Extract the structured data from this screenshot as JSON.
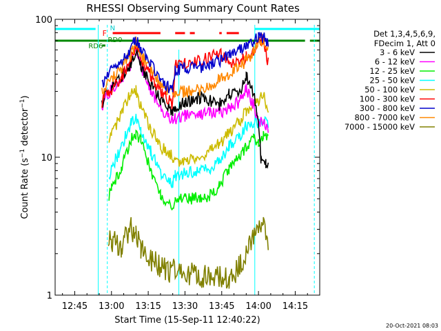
{
  "chart_data": {
    "type": "line",
    "title": "RHESSI Observing Summary Count Rates",
    "xlabel": "Start Time (15-Sep-11 12:40:22)",
    "ylabel": "Count Rate (s⁻¹ detector⁻¹)",
    "ylabel_parts": {
      "pre": "Count Rate (s",
      "sup1": "−1",
      "mid": " detector",
      "sup2": "−1",
      "post": ")"
    },
    "yscale": "log",
    "ylim": [
      1,
      100
    ],
    "xlim_minutes": [
      -23,
      85
    ],
    "x_ticks": [
      {
        "m": -15,
        "label": "12:45"
      },
      {
        "m": 0,
        "label": "13:00"
      },
      {
        "m": 15,
        "label": "13:15"
      },
      {
        "m": 30,
        "label": "13:30"
      },
      {
        "m": 45,
        "label": "13:45"
      },
      {
        "m": 60,
        "label": "14:00"
      },
      {
        "m": 75,
        "label": "14:15"
      }
    ],
    "y_ticks": [
      {
        "v": 1,
        "label": "1"
      },
      {
        "v": 10,
        "label": "10"
      },
      {
        "v": 100,
        "label": "100"
      }
    ],
    "grid": false,
    "legend_position": "right",
    "legend_header": [
      "Det 1,3,4,5,6,9,",
      "FDecim 1, Att 0"
    ],
    "series": [
      {
        "name": "3 - 6 keV",
        "color": "#000000",
        "values": [
          [
            -3.9,
            24
          ],
          [
            -3,
            28
          ],
          [
            0,
            32
          ],
          [
            4,
            38
          ],
          [
            8,
            48
          ],
          [
            10,
            58
          ],
          [
            12,
            46
          ],
          [
            16,
            34
          ],
          [
            20,
            26
          ],
          [
            25,
            21
          ],
          [
            26,
            23
          ],
          [
            30,
            25
          ],
          [
            36,
            27
          ],
          [
            40,
            26
          ],
          [
            44,
            24
          ],
          [
            48,
            29
          ],
          [
            52,
            28
          ],
          [
            55,
            38
          ],
          [
            58,
            30
          ],
          [
            60,
            17
          ],
          [
            61,
            10
          ],
          [
            63,
            9
          ],
          [
            64,
            8.5
          ]
        ]
      },
      {
        "name": "6 - 12 keV",
        "color": "#ff00ff",
        "values": [
          [
            -3.9,
            23
          ],
          [
            -3,
            26
          ],
          [
            0,
            31
          ],
          [
            4,
            36
          ],
          [
            8,
            48
          ],
          [
            10,
            64
          ],
          [
            12,
            46
          ],
          [
            16,
            31
          ],
          [
            20,
            23
          ],
          [
            25,
            18
          ],
          [
            26,
            19
          ],
          [
            30,
            20
          ],
          [
            36,
            20
          ],
          [
            40,
            21
          ],
          [
            44,
            21
          ],
          [
            48,
            23
          ],
          [
            52,
            25
          ],
          [
            55,
            31
          ],
          [
            58,
            24
          ],
          [
            60,
            18
          ],
          [
            62,
            18
          ],
          [
            64,
            16
          ]
        ]
      },
      {
        "name": "12 - 25 keV",
        "color": "#00ee00",
        "values": [
          [
            -1,
            5.2
          ],
          [
            0,
            5.8
          ],
          [
            4,
            8.5
          ],
          [
            8,
            13.5
          ],
          [
            10,
            15
          ],
          [
            12,
            13
          ],
          [
            16,
            8
          ],
          [
            20,
            5.5
          ],
          [
            25,
            4.1
          ],
          [
            26,
            4.9
          ],
          [
            30,
            5
          ],
          [
            36,
            5.1
          ],
          [
            40,
            5.2
          ],
          [
            44,
            6.2
          ],
          [
            48,
            8.3
          ],
          [
            52,
            9.8
          ],
          [
            55,
            12
          ],
          [
            58,
            13.5
          ],
          [
            60,
            13
          ],
          [
            62,
            14
          ],
          [
            64,
            13.5
          ]
        ]
      },
      {
        "name": "25 - 50 keV",
        "color": "#00ffff",
        "values": [
          [
            -1,
            7.2
          ],
          [
            0,
            8.2
          ],
          [
            4,
            12
          ],
          [
            8,
            17.5
          ],
          [
            10,
            19
          ],
          [
            12,
            16
          ],
          [
            16,
            11
          ],
          [
            20,
            7.8
          ],
          [
            25,
            6.5
          ],
          [
            26,
            7.4
          ],
          [
            30,
            7.6
          ],
          [
            36,
            8
          ],
          [
            40,
            8.2
          ],
          [
            44,
            9.5
          ],
          [
            48,
            12
          ],
          [
            52,
            14
          ],
          [
            55,
            17
          ],
          [
            58,
            17.5
          ],
          [
            60,
            18
          ],
          [
            62,
            18
          ],
          [
            64,
            17
          ]
        ]
      },
      {
        "name": "50 - 100 keV",
        "color": "#ccbb00",
        "values": [
          [
            -1,
            13
          ],
          [
            0,
            14.5
          ],
          [
            4,
            21
          ],
          [
            8,
            29
          ],
          [
            10,
            30
          ],
          [
            12,
            24
          ],
          [
            16,
            16
          ],
          [
            20,
            12
          ],
          [
            25,
            10
          ],
          [
            26,
            9.3
          ],
          [
            30,
            9.5
          ],
          [
            36,
            10
          ],
          [
            40,
            11
          ],
          [
            44,
            12.5
          ],
          [
            48,
            15
          ],
          [
            52,
            18
          ],
          [
            55,
            22
          ],
          [
            58,
            24
          ],
          [
            60,
            26
          ],
          [
            62,
            30
          ],
          [
            64,
            21
          ]
        ]
      },
      {
        "name": "100 - 300 keV",
        "color": "#ff0000",
        "values": [
          [
            -3.9,
            25
          ],
          [
            -3,
            28
          ],
          [
            0,
            30
          ],
          [
            4,
            38
          ],
          [
            8,
            50
          ],
          [
            10,
            68
          ],
          [
            12,
            52
          ],
          [
            16,
            39
          ],
          [
            20,
            30
          ],
          [
            25,
            24
          ],
          [
            26,
            47
          ],
          [
            30,
            48
          ],
          [
            36,
            50
          ],
          [
            40,
            53
          ],
          [
            44,
            57
          ],
          [
            48,
            48
          ],
          [
            52,
            50
          ],
          [
            55,
            53
          ],
          [
            58,
            60
          ],
          [
            60,
            72
          ],
          [
            62,
            71
          ],
          [
            64,
            48
          ]
        ]
      },
      {
        "name": "300 - 800 keV",
        "color": "#0000cc",
        "values": [
          [
            -3.9,
            33
          ],
          [
            -3,
            36
          ],
          [
            0,
            42
          ],
          [
            4,
            48
          ],
          [
            8,
            62
          ],
          [
            10,
            72
          ],
          [
            12,
            60
          ],
          [
            16,
            47
          ],
          [
            20,
            36
          ],
          [
            25,
            30
          ],
          [
            26,
            43
          ],
          [
            30,
            44
          ],
          [
            36,
            45
          ],
          [
            40,
            47
          ],
          [
            44,
            50
          ],
          [
            48,
            57
          ],
          [
            52,
            62
          ],
          [
            55,
            63
          ],
          [
            58,
            68
          ],
          [
            60,
            75
          ],
          [
            62,
            74
          ],
          [
            64,
            66
          ]
        ]
      },
      {
        "name": "800 - 7000 keV",
        "color": "#ff8800",
        "values": [
          [
            -3.9,
            30
          ],
          [
            -3,
            32
          ],
          [
            0,
            36
          ],
          [
            4,
            44
          ],
          [
            8,
            56
          ],
          [
            10,
            68
          ],
          [
            12,
            56
          ],
          [
            16,
            43
          ],
          [
            20,
            34
          ],
          [
            25,
            29
          ],
          [
            26,
            29
          ],
          [
            30,
            30
          ],
          [
            36,
            31
          ],
          [
            40,
            33
          ],
          [
            44,
            36
          ],
          [
            48,
            40
          ],
          [
            52,
            45
          ],
          [
            55,
            50
          ],
          [
            58,
            58
          ],
          [
            60,
            68
          ],
          [
            62,
            70
          ],
          [
            64,
            62
          ]
        ]
      },
      {
        "name": "7000 - 15000 keV",
        "color": "#808000",
        "values": [
          [
            -1.3,
            2.8
          ],
          [
            0,
            2.5
          ],
          [
            4,
            2.3
          ],
          [
            8,
            3.1
          ],
          [
            10,
            2.6
          ],
          [
            12,
            2.2
          ],
          [
            16,
            1.8
          ],
          [
            20,
            1.6
          ],
          [
            24,
            1.5
          ],
          [
            48,
            1.3
          ],
          [
            52,
            1.6
          ],
          [
            56,
            2.2
          ],
          [
            59,
            2.8
          ],
          [
            62,
            3
          ],
          [
            64,
            2.5
          ]
        ]
      }
    ],
    "annotations": [
      {
        "text": "N",
        "color": "#00cccc"
      },
      {
        "text": "F",
        "color": "#ff0000"
      },
      {
        "text": "RD0",
        "color": "#008800"
      },
      {
        "text": "RD6",
        "color": "#008800"
      }
    ],
    "flag_bars": {
      "night": {
        "color": "#00ffff",
        "intervals_min": [
          [
            -23,
            -6.5
          ],
          [
            58.5,
            85
          ]
        ]
      },
      "flare": {
        "color": "#ff0000",
        "intervals_min": [
          [
            0.5,
            20
          ],
          [
            26,
            30
          ],
          [
            32,
            34
          ],
          [
            44,
            45
          ],
          [
            47,
            52
          ]
        ]
      },
      "decim": {
        "color": "#008800",
        "intervals_min": [
          [
            -23,
            79
          ]
        ],
        "extra_min": [
          [
            81,
            85
          ]
        ]
      }
    },
    "vertical_lines": [
      {
        "m": -5.4,
        "color": "#00ffff",
        "dashed": false
      },
      {
        "m": -1.7,
        "color": "#00ffff",
        "dashed": true
      },
      {
        "m": 58.5,
        "color": "#00ffff",
        "dashed": false
      },
      {
        "m": 82.8,
        "color": "#00ffff",
        "dashed": true
      }
    ]
  },
  "footer": {
    "date_stamp": "20-Oct-2021 08:03"
  }
}
